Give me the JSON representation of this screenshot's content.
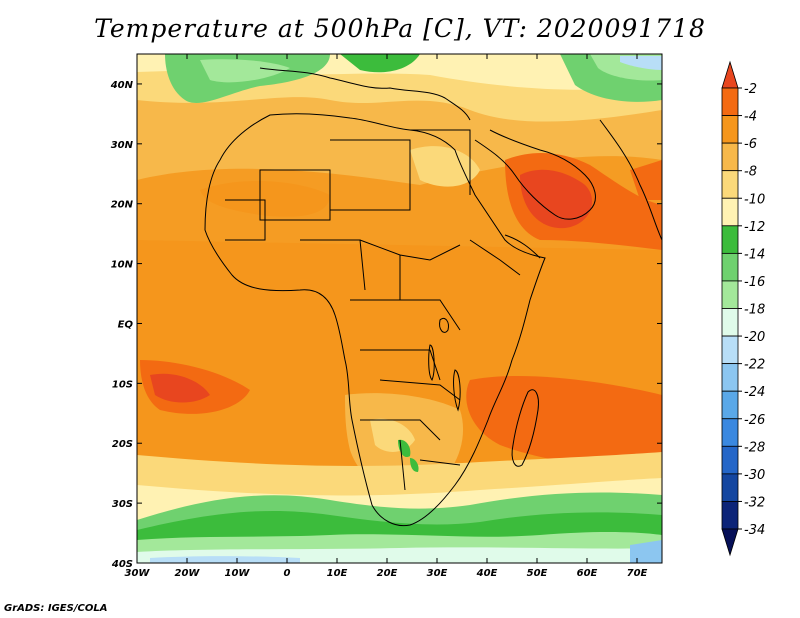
{
  "title": "Temperature at 500hPa [C], VT: 2020091718",
  "credit": "GrADS: IGES/COLA",
  "map": {
    "lon_range": [
      -30,
      75
    ],
    "lat_range": [
      -40,
      45
    ],
    "lon_ticks": [
      "30W",
      "20W",
      "10W",
      "0",
      "10E",
      "20E",
      "30E",
      "40E",
      "50E",
      "60E",
      "70E"
    ],
    "lat_ticks": [
      "40N",
      "30N",
      "20N",
      "10N",
      "EQ",
      "10S",
      "20S",
      "30S",
      "40S"
    ]
  },
  "colorbar": {
    "labels": [
      "-2",
      "-4",
      "-6",
      "-8",
      "-10",
      "-12",
      "-14",
      "-16",
      "-18",
      "-20",
      "-22",
      "-24",
      "-26",
      "-28",
      "-30",
      "-32",
      "-34"
    ],
    "colors": [
      "#e8461f",
      "#f36a12",
      "#f5961c",
      "#f7b84a",
      "#fbd97a",
      "#fff2b3",
      "#3cbc3c",
      "#6fd16f",
      "#a3e89a",
      "#e0fbea",
      "#b8def7",
      "#8cc6f0",
      "#5aa8e8",
      "#3a88e0",
      "#2466c8",
      "#1446a0",
      "#0c2478",
      "#061058"
    ]
  },
  "colors": {
    "warm_core": "#e8461f",
    "warm": "#f5961c",
    "mild": "#f7b84a",
    "cool": "#fbd97a",
    "green": "#3cbc3c",
    "light_green": "#6fd16f",
    "border": "#000000"
  }
}
